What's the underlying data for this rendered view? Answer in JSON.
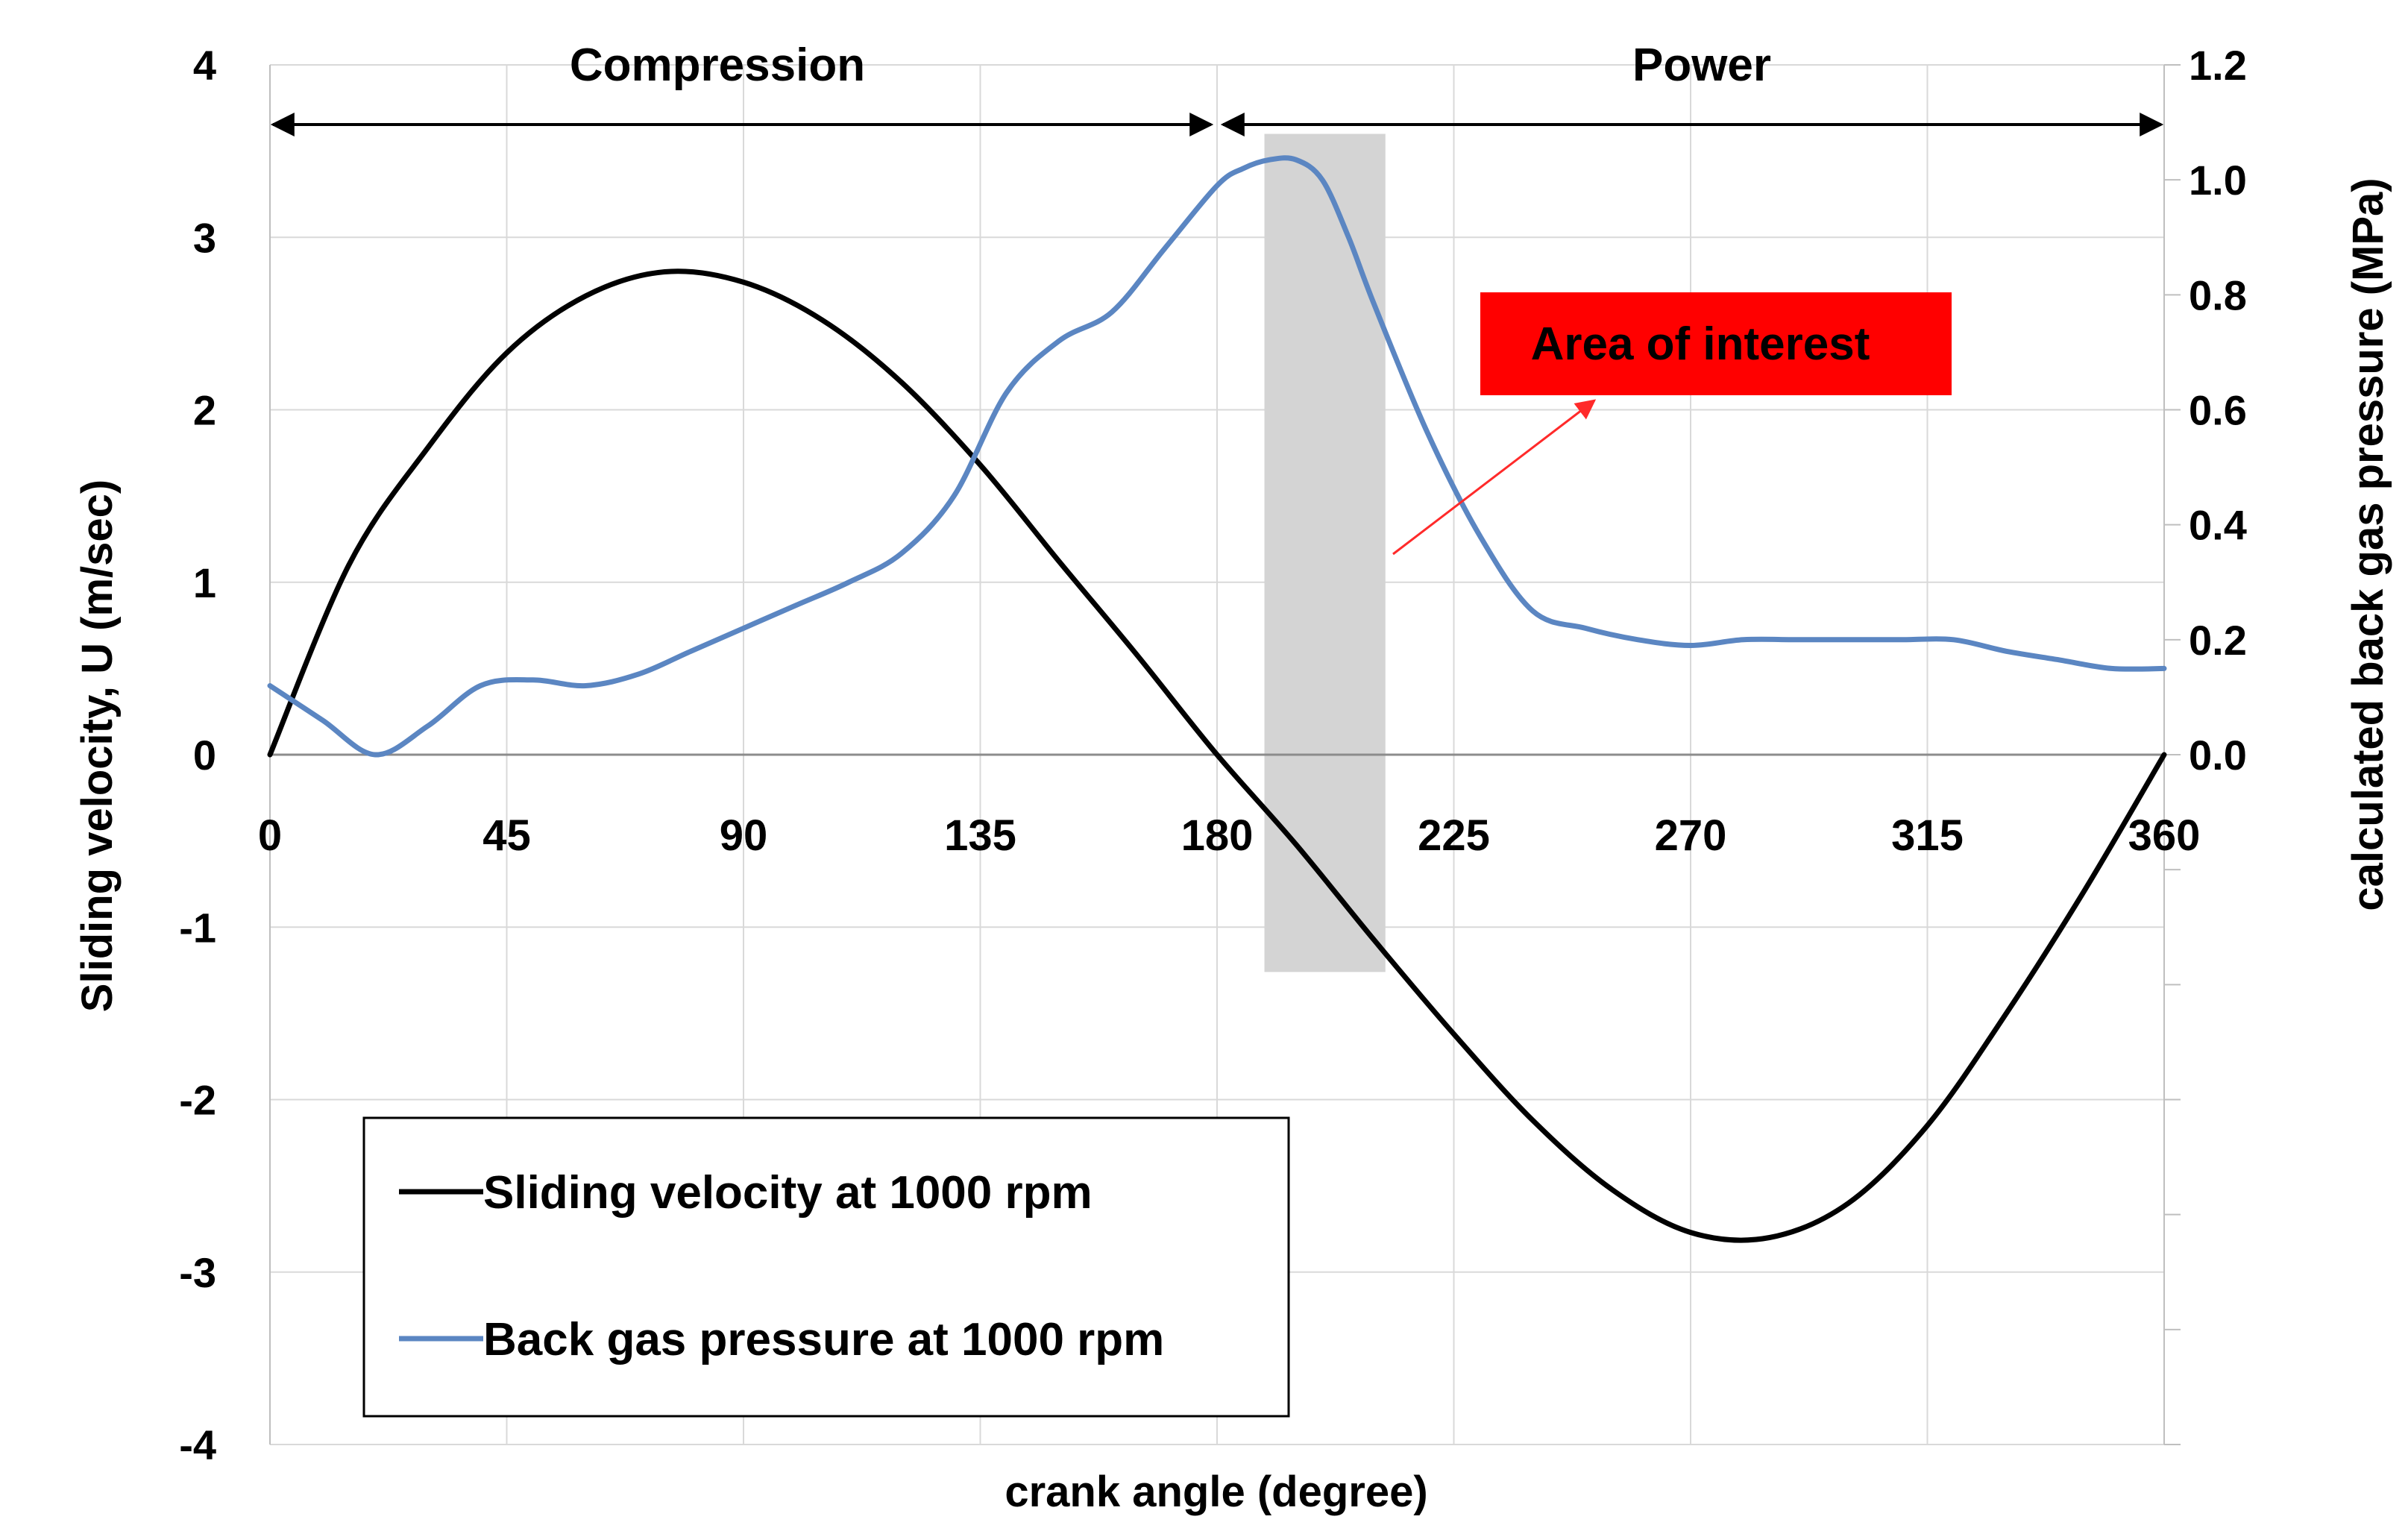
{
  "colors": {
    "velocity": "#000000",
    "pressure": "#5b86c2",
    "highlight": "#d4d4d4",
    "callout_box": "#ff0000",
    "callout_arrow": "#ff2a2a",
    "grid": "#d9d9d9"
  },
  "chart_data": {
    "type": "line",
    "title": "",
    "xlabel": "crank angle (degree)",
    "ylabel": "Sliding velocity, U (m/sec)",
    "y2label": "calculated back gas pressure (MPa)",
    "xlim": [
      0,
      360
    ],
    "ylim": [
      -4,
      4
    ],
    "y2lim": [
      -1.2,
      1.2
    ],
    "x_ticks": [
      0,
      45,
      90,
      135,
      180,
      225,
      270,
      315,
      360
    ],
    "y_ticks": [
      -4,
      -3,
      -2,
      -1,
      0,
      1,
      2,
      3,
      4
    ],
    "y2_ticks": [
      "0.0",
      "0.2",
      "0.4",
      "0.6",
      "0.8",
      "1.0",
      "1.2"
    ],
    "phases": [
      {
        "label": "Compression",
        "from": 0,
        "to": 180
      },
      {
        "label": "Power",
        "from": 180,
        "to": 360
      }
    ],
    "highlight_region": {
      "x_from": 189,
      "x_to": 212,
      "y_from": -1.26,
      "y_to": 3.6
    },
    "annotation": {
      "text": "Area of interest",
      "position": "right of highlighted region"
    },
    "legend": {
      "position": "bottom-left"
    },
    "series": [
      {
        "name": "Sliding velocity at 1000 rpm",
        "axis": "left",
        "x": [
          0,
          15,
          30,
          45,
          60,
          75,
          90,
          105,
          120,
          135,
          150,
          165,
          180,
          195,
          210,
          225,
          240,
          255,
          270,
          285,
          300,
          315,
          330,
          345,
          360
        ],
        "y": [
          0,
          1.1,
          1.78,
          2.33,
          2.66,
          2.8,
          2.74,
          2.52,
          2.16,
          1.68,
          1.12,
          0.57,
          0.0,
          -0.52,
          -1.08,
          -1.62,
          -2.12,
          -2.52,
          -2.77,
          -2.8,
          -2.6,
          -2.15,
          -1.5,
          -0.78,
          0
        ]
      },
      {
        "name": "Back gas pressure at 1000 rpm",
        "axis": "right",
        "x": [
          0,
          10,
          20,
          30,
          40,
          50,
          60,
          70,
          80,
          90,
          100,
          110,
          120,
          130,
          140,
          150,
          160,
          170,
          180,
          185,
          190,
          195,
          200,
          205,
          210,
          220,
          230,
          240,
          250,
          260,
          270,
          280,
          290,
          300,
          310,
          320,
          330,
          340,
          350,
          360
        ],
        "y": [
          0.12,
          0.06,
          0.0,
          0.05,
          0.12,
          0.13,
          0.12,
          0.14,
          0.18,
          0.22,
          0.26,
          0.3,
          0.35,
          0.45,
          0.63,
          0.72,
          0.77,
          0.88,
          0.99,
          1.02,
          1.035,
          1.035,
          1.0,
          0.9,
          0.78,
          0.56,
          0.38,
          0.25,
          0.22,
          0.2,
          0.19,
          0.2,
          0.2,
          0.2,
          0.2,
          0.2,
          0.18,
          0.165,
          0.15,
          0.15
        ]
      }
    ]
  }
}
